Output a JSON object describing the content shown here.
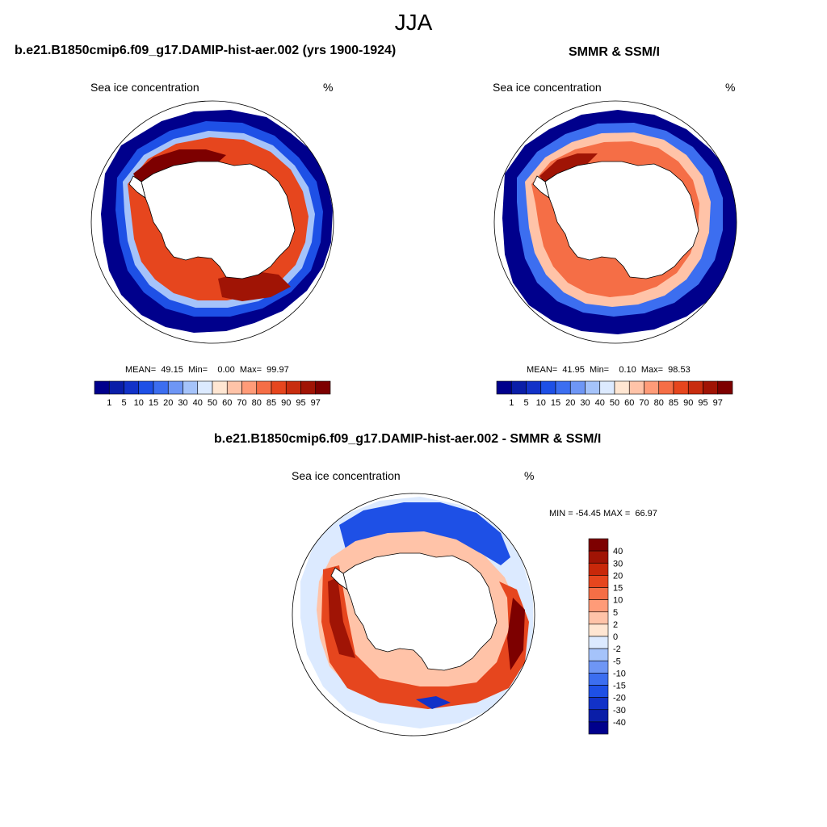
{
  "main_title": "JJA",
  "panels": [
    {
      "title": "b.e21.B1850cmip6.f09_g17.DAMIP-hist-aer.002 (yrs 1900-1924)",
      "left_label": "Sea ice concentration",
      "units": "%",
      "stats": "MEAN=  49.15  Min=    0.00  Max=  99.97"
    },
    {
      "title": "SMMR & SSM/I",
      "left_label": "Sea ice concentration",
      "units": "%",
      "stats": "MEAN=  41.95  Min=    0.10  Max=  98.53"
    },
    {
      "title": "b.e21.B1850cmip6.f09_g17.DAMIP-hist-aer.002 - SMMR & SSM/I",
      "left_label": "Sea ice concentration",
      "units": "%",
      "stats": "MIN = -54.45 MAX =  66.97"
    }
  ],
  "colorbar_abs": {
    "labels": [
      "1",
      "5",
      "10",
      "15",
      "20",
      "30",
      "40",
      "50",
      "60",
      "70",
      "80",
      "85",
      "90",
      "95",
      "97"
    ],
    "colors": [
      "#00008c",
      "#0a1ea8",
      "#1232c8",
      "#1e50e6",
      "#3c6ef0",
      "#6e96f5",
      "#a5c3fa",
      "#dceaff",
      "#ffe6d2",
      "#ffc3a8",
      "#ff9b78",
      "#f56e46",
      "#e6461e",
      "#c82d0f",
      "#a01405",
      "#7d0000"
    ]
  },
  "colorbar_diff": {
    "labels": [
      "40",
      "30",
      "20",
      "15",
      "10",
      "5",
      "2",
      "0",
      "-2",
      "-5",
      "-10",
      "-15",
      "-20",
      "-30",
      "-40"
    ],
    "colors": [
      "#7d0000",
      "#a01405",
      "#c8280a",
      "#e6461e",
      "#f56e46",
      "#ff9b78",
      "#ffc3a8",
      "#ffe6d2",
      "#dceaff",
      "#a5c3fa",
      "#6e96f5",
      "#3c6ef0",
      "#1e50e6",
      "#1232c8",
      "#0a1ea8",
      "#00008c"
    ]
  },
  "colors": {
    "land": "#ffffff",
    "coast": "#000000"
  }
}
